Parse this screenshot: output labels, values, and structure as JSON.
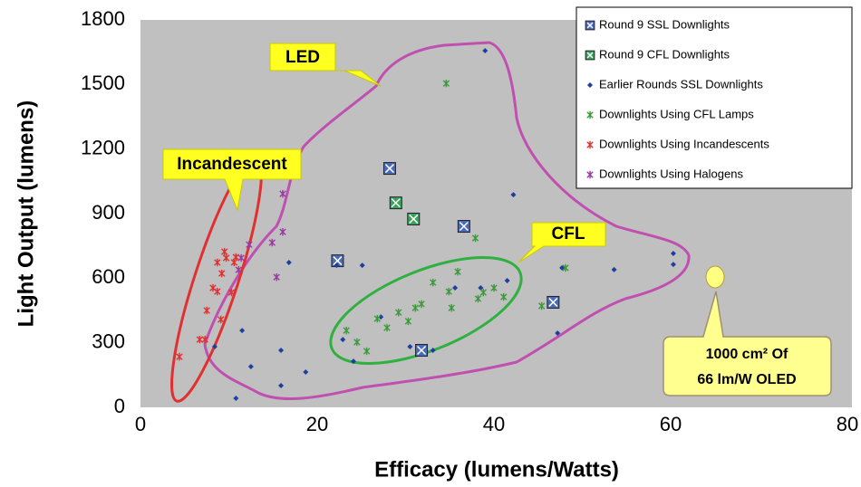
{
  "chart_data": {
    "type": "scatter",
    "xlabel": "Efficacy (lumens/Watts)",
    "ylabel": "Light Output (lumens)",
    "xlim": [
      0,
      80
    ],
    "xticks": [
      0,
      20,
      40,
      60,
      80
    ],
    "ylim": [
      0,
      1800
    ],
    "yticks": [
      0,
      300,
      600,
      900,
      1200,
      1500,
      1800
    ],
    "grid": false,
    "legend": "upper right",
    "annotations": [
      "LED",
      "Incandescent",
      "CFL",
      "1000 cm² Of",
      "66 lm/W OLED"
    ],
    "series": [
      {
        "name": "Round 9 SSL Downlights",
        "color": "#4a6bb8",
        "marker": "square-x",
        "x": [
          28.2,
          36.6,
          22.3,
          46.7,
          31.8
        ],
        "values": [
          1110,
          841,
          681,
          488,
          265
        ]
      },
      {
        "name": "Round 9 CFL Downlights",
        "color": "#3aa35a",
        "marker": "square-x",
        "x": [
          28.9,
          30.9
        ],
        "values": [
          950,
          875
        ]
      },
      {
        "name": "Earlier Rounds SSL Downlights",
        "color": "#1f3f9f",
        "marker": "diamond",
        "x": [
          39,
          42.2,
          16.8,
          11.5,
          12.5,
          8.4,
          10.8,
          15.9,
          15.9,
          18.7,
          22.2,
          25.1,
          22.9,
          24.1,
          27.2,
          30.5,
          33.1,
          35.6,
          38.5,
          41.5,
          47.2,
          53.6,
          60.3,
          60.3,
          47.7
        ],
        "values": [
          1657,
          988,
          673,
          357,
          189,
          282,
          42,
          265,
          101,
          164,
          660,
          660,
          315,
          214,
          420,
          282,
          265,
          555,
          555,
          589,
          345,
          640,
          715,
          664,
          648
        ]
      },
      {
        "name": "Downlights Using CFL Lamps",
        "color": "#3a9a3a",
        "marker": "x",
        "x": [
          34.6,
          37.9,
          23.3,
          24.5,
          25.6,
          26.8,
          27.9,
          29.2,
          30.3,
          31.1,
          31.8,
          33.1,
          34.9,
          35.2,
          35.9,
          38.2,
          38.8,
          40,
          41.1,
          45.4,
          48.1
        ],
        "values": [
          1505,
          786,
          357,
          303,
          261,
          412,
          370,
          441,
          400,
          462,
          480,
          580,
          538,
          462,
          630,
          505,
          534,
          555,
          513,
          471,
          648
        ]
      },
      {
        "name": "Downlights Using Incandescents",
        "color": "#e03030",
        "marker": "x",
        "x": [
          4.4,
          6.7,
          7.3,
          7.5,
          8.2,
          8.7,
          8.7,
          9.1,
          9.2,
          9.5,
          9.7,
          10.3,
          10.6,
          10.8
        ],
        "values": [
          235,
          315,
          315,
          450,
          555,
          538,
          673,
          408,
          622,
          723,
          694,
          534,
          673,
          698
        ]
      },
      {
        "name": "Downlights Using Halogens",
        "color": "#9a3aa0",
        "marker": "x",
        "x": [
          16.1,
          16.1,
          14.9,
          15.4,
          12.3,
          11.4,
          11.1
        ],
        "values": [
          992,
          815,
          765,
          605,
          756,
          694,
          639
        ]
      }
    ]
  }
}
